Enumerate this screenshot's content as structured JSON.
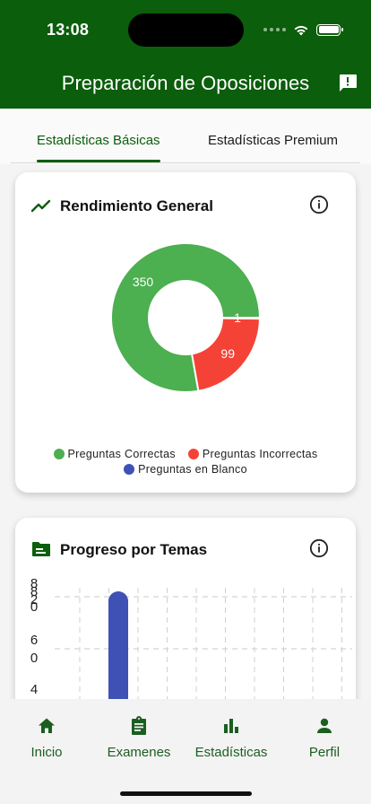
{
  "status_bar": {
    "time": "13:08"
  },
  "app_bar": {
    "title": "Preparación de Oposiciones",
    "feedback_icon": "feedback-icon"
  },
  "tabs": [
    {
      "label": "Estadísticas Básicas",
      "selected": true
    },
    {
      "label": "Estadísticas Premium",
      "selected": false
    }
  ],
  "general_card": {
    "title": "Rendimiento General",
    "icon": "trending-up-icon",
    "chart_data": {
      "type": "pie",
      "donut": true,
      "slices": [
        {
          "label": "Preguntas Correctas",
          "value": 350,
          "color": "#4caf50"
        },
        {
          "label": "Preguntas Incorrectas",
          "value": 99,
          "color": "#f44336"
        },
        {
          "label": "Preguntas en Blanco",
          "value": 1,
          "color": "#3f51b5"
        }
      ],
      "legend": "bottom"
    }
  },
  "topics_card": {
    "title": "Progreso por Temas",
    "icon": "topic-folder-icon",
    "chart_data": {
      "type": "bar",
      "tick_labels": [
        "8",
        "8",
        "2",
        "0",
        "6",
        "0",
        "4"
      ],
      "bar_color": "#3f51b5",
      "grid": true
    }
  },
  "bottom_nav": [
    {
      "label": "Inicio",
      "icon": "home-icon"
    },
    {
      "label": "Examenes",
      "icon": "clipboard-icon"
    },
    {
      "label": "Estadísticas",
      "icon": "bar-chart-icon",
      "selected": true
    },
    {
      "label": "Perfil",
      "icon": "person-icon"
    }
  ],
  "colors": {
    "primary": "#0b5e0b",
    "correct": "#4caf50",
    "incorrect": "#f44336",
    "blank": "#3f51b5"
  }
}
